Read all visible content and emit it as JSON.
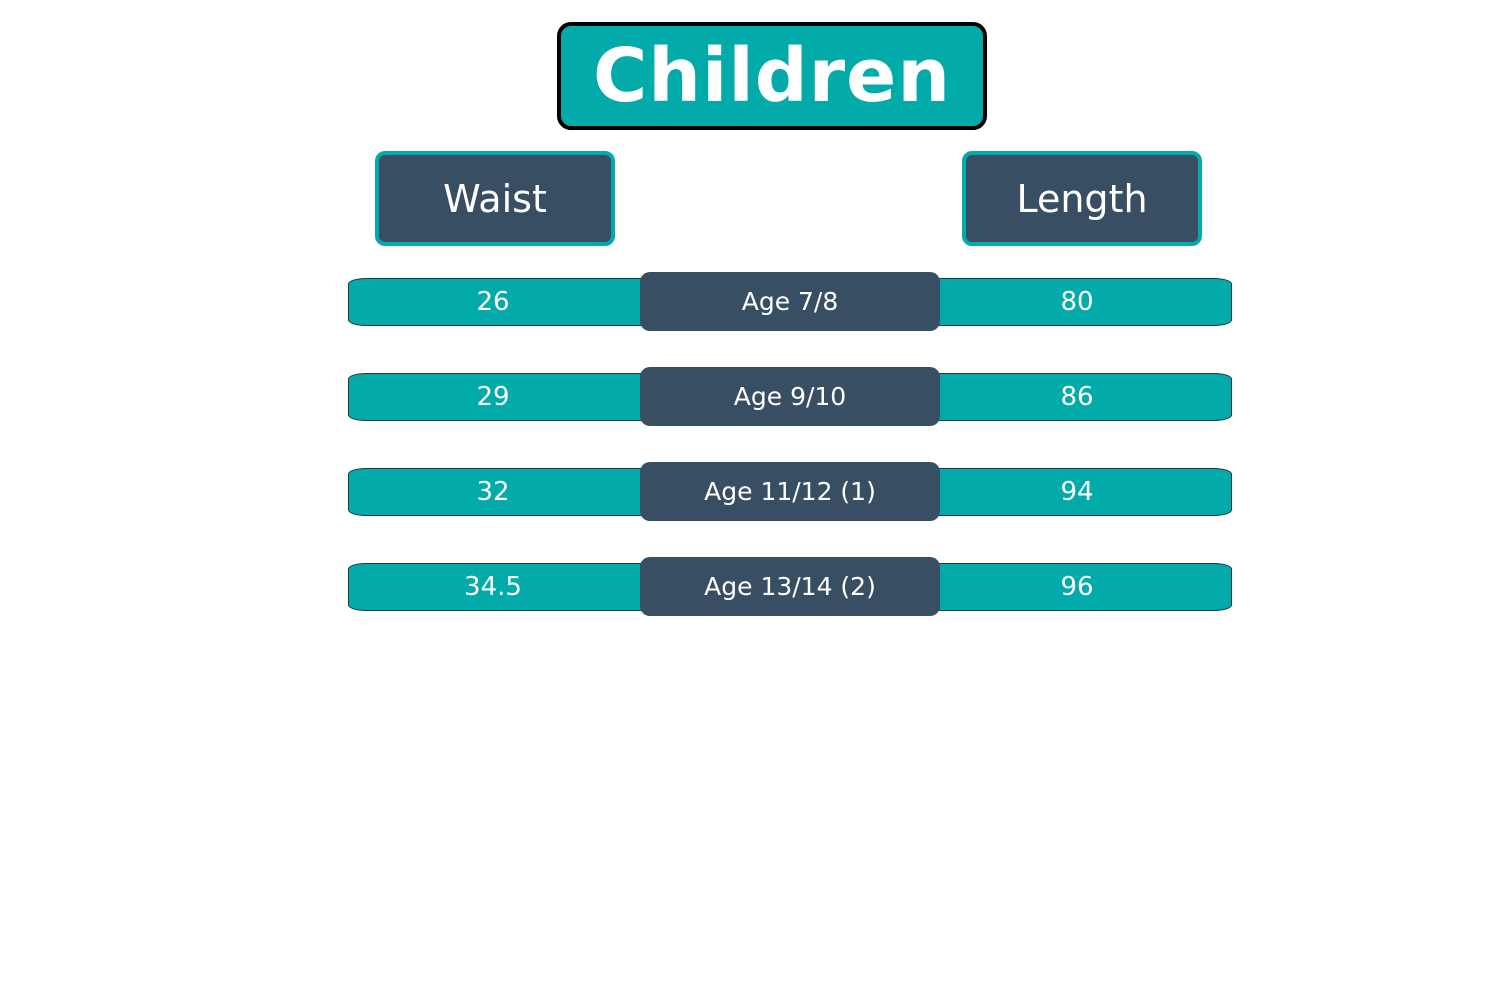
{
  "title": "Children",
  "headers": {
    "waist": "Waist",
    "length": "Length"
  },
  "rows": [
    {
      "waist": "26",
      "age": "Age 7/8",
      "length": "80"
    },
    {
      "waist": "29",
      "age": "Age 9/10",
      "length": "86"
    },
    {
      "waist": "32",
      "age": "Age 11/12 (1)",
      "length": "94"
    },
    {
      "waist": "34.5",
      "age": "Age 13/14 (2)",
      "length": "96"
    }
  ],
  "colors": {
    "teal": "#03aaaa",
    "slate": "#374e63"
  }
}
